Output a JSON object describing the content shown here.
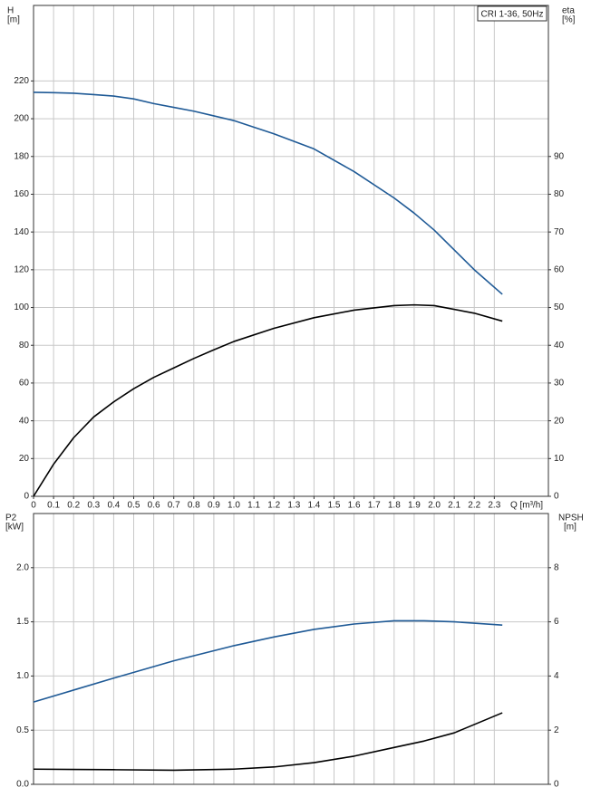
{
  "chart_data": [
    {
      "type": "line",
      "box_title": "CRI 1-36, 50Hz",
      "ylabel": "H",
      "yunit": "[m]",
      "y2label": "eta",
      "y2unit": "[%]",
      "xlabel": "Q [m³/h]",
      "x": [
        0,
        0.1,
        0.2,
        0.3,
        0.4,
        0.5,
        0.6,
        0.7,
        0.8,
        0.9,
        1.0,
        1.2,
        1.4,
        1.6,
        1.8,
        1.9,
        2.0,
        2.2,
        2.34
      ],
      "series": [
        {
          "name": "H",
          "color": "#1f5a96",
          "values": [
            214,
            213.8,
            213.5,
            212.8,
            212,
            210.5,
            208,
            206,
            204,
            201.5,
            199,
            192,
            184,
            172,
            158,
            150,
            141,
            120,
            107
          ]
        },
        {
          "name": "eta",
          "color": "#000000",
          "axis": "y2",
          "values": [
            0,
            8.5,
            15.5,
            21,
            25,
            28.5,
            31.5,
            34,
            36.5,
            38.8,
            41,
            44.5,
            47.3,
            49.3,
            50.5,
            50.7,
            50.5,
            48.5,
            46.4
          ]
        }
      ],
      "xlim": [
        0,
        2.57
      ],
      "xticks": [
        0,
        0.1,
        0.2,
        0.3,
        0.4,
        0.5,
        0.6,
        0.7,
        0.8,
        0.9,
        {
          "value": 1,
          "label": "1.0"
        },
        1.1,
        1.2,
        1.3,
        1.4,
        1.5,
        1.6,
        1.7,
        1.8,
        1.9,
        {
          "value": 2,
          "label": "2.0"
        },
        2.1,
        2.2,
        2.3
      ],
      "ylim": [
        0,
        260
      ],
      "yticks": [
        0,
        20,
        40,
        60,
        80,
        100,
        120,
        140,
        160,
        180,
        200,
        220
      ],
      "y2lim": [
        0,
        130
      ],
      "y2ticks": [
        0,
        10,
        20,
        30,
        40,
        50,
        60,
        70,
        80,
        90
      ],
      "grid": true
    },
    {
      "type": "line",
      "ylabel": "P2",
      "yunit": "[kW]",
      "y2label": "NPSH",
      "y2unit": "[m]",
      "x": [
        0,
        0.2,
        0.4,
        0.7,
        1.0,
        1.2,
        1.4,
        1.6,
        1.8,
        1.95,
        2.1,
        2.34
      ],
      "series": [
        {
          "name": "P2",
          "color": "#1f5a96",
          "values": [
            0.76,
            0.87,
            0.98,
            1.14,
            1.28,
            1.36,
            1.43,
            1.48,
            1.51,
            1.51,
            1.5,
            1.47
          ]
        },
        {
          "name": "NPSH",
          "color": "#000000",
          "axis": "y2",
          "values": [
            0.56,
            0.55,
            0.54,
            0.52,
            0.56,
            0.64,
            0.8,
            1.04,
            1.36,
            1.6,
            1.9,
            2.64
          ]
        }
      ],
      "xlim": [
        0,
        2.57
      ],
      "ylim": [
        0,
        2.5
      ],
      "yticks": [
        {
          "value": 0,
          "label": "0.0"
        },
        {
          "value": 0.5,
          "label": "0.5"
        },
        {
          "value": 1,
          "label": "1.0"
        },
        {
          "value": 1.5,
          "label": "1.5"
        },
        {
          "value": 2,
          "label": "2.0"
        }
      ],
      "y2lim": [
        0,
        10
      ],
      "y2ticks": [
        0,
        2,
        4,
        6,
        8
      ],
      "grid": true
    }
  ]
}
